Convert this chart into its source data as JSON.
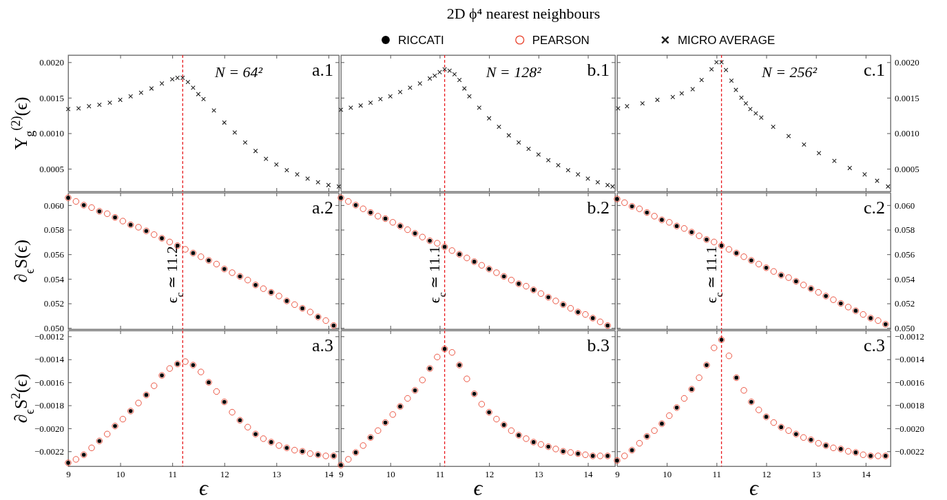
{
  "chart_data": [
    {
      "type": "scatter",
      "legend": "top",
      "ylabel": "Υ$_{g}$$^{(2)}$(ϵ)",
      "annotations": [
        "a.1",
        "N = 64²"
      ],
      "xlim": [
        9,
        14.2
      ],
      "xticks": [
        9,
        10,
        11,
        12,
        13,
        14
      ],
      "ylim": [
        0.00018,
        0.0021
      ],
      "yticks": [
        {
          "value": 0.0005,
          "label": "0.0005"
        },
        {
          "value": 0.001,
          "label": "0.0010"
        },
        {
          "value": 0.0015,
          "label": "0.0015"
        },
        {
          "value": 0.002,
          "label": "0.0020"
        }
      ],
      "tick_labels": "y",
      "ref_lines": [
        {
          "axis": "x",
          "value": 11.2,
          "color": "#e8181c",
          "line_style": "dashed"
        }
      ],
      "series": [
        {
          "name": "MICRO AVERAGE",
          "color": "#222222",
          "marker": "cross",
          "x": [
            9.0,
            9.2,
            9.4,
            9.6,
            9.8,
            10.0,
            10.2,
            10.4,
            10.6,
            10.8,
            11.0,
            11.1,
            11.2,
            11.3,
            11.4,
            11.5,
            11.6,
            11.8,
            12.0,
            12.2,
            12.4,
            12.6,
            12.8,
            13.0,
            13.2,
            13.4,
            13.6,
            13.8,
            14.0,
            14.2
          ],
          "values": [
            0.00134,
            0.00135,
            0.00138,
            0.0014,
            0.00143,
            0.00147,
            0.00152,
            0.00157,
            0.00163,
            0.0017,
            0.00176,
            0.00178,
            0.00178,
            0.00172,
            0.00164,
            0.00155,
            0.00148,
            0.00132,
            0.00115,
            0.00101,
            0.00087,
            0.00075,
            0.00064,
            0.00056,
            0.00048,
            0.00042,
            0.00036,
            0.00031,
            0.00027,
            0.00025
          ]
        }
      ]
    },
    {
      "type": "scatter",
      "title": "2D ϕ⁴ nearest neighbours",
      "annotations": [
        "b.1",
        "N = 128²"
      ],
      "xlim": [
        9,
        14.55
      ],
      "xticks": [
        9,
        10,
        11,
        12,
        13,
        14
      ],
      "ylim": [
        0.00018,
        0.0021
      ],
      "yticks": [
        {
          "value": 0.0005,
          "label": null
        },
        {
          "value": 0.001,
          "label": null
        },
        {
          "value": 0.0015,
          "label": null
        },
        {
          "value": 0.002,
          "label": null
        }
      ],
      "tick_labels": false,
      "ref_lines": [
        {
          "axis": "x",
          "value": 11.1,
          "color": "#e8181c",
          "line_style": "dashed"
        }
      ],
      "series": [
        {
          "color": "#222222",
          "marker": "cross",
          "x": [
            9.0,
            9.2,
            9.4,
            9.6,
            9.8,
            10.0,
            10.2,
            10.4,
            10.6,
            10.8,
            10.9,
            11.0,
            11.1,
            11.2,
            11.3,
            11.4,
            11.5,
            11.6,
            11.8,
            12.0,
            12.2,
            12.4,
            12.6,
            12.8,
            13.0,
            13.2,
            13.4,
            13.6,
            13.8,
            14.0,
            14.2,
            14.4,
            14.5
          ],
          "values": [
            0.00133,
            0.00136,
            0.00139,
            0.00143,
            0.00148,
            0.00152,
            0.00158,
            0.00164,
            0.0017,
            0.00177,
            0.00181,
            0.00186,
            0.0019,
            0.00188,
            0.00183,
            0.00175,
            0.00163,
            0.00152,
            0.00136,
            0.00121,
            0.00109,
            0.00097,
            0.00087,
            0.00078,
            0.0007,
            0.00062,
            0.00055,
            0.00048,
            0.00042,
            0.00036,
            0.00031,
            0.00027,
            0.00025
          ]
        }
      ]
    },
    {
      "type": "scatter",
      "annotations": [
        "c.1",
        "N = 256²"
      ],
      "xlim": [
        9,
        14.5
      ],
      "xticks": [
        9,
        10,
        11,
        12,
        13,
        14
      ],
      "ylim": [
        0.00018,
        0.0021
      ],
      "yticks": [
        {
          "value": 0.0005,
          "label": "0.0005"
        },
        {
          "value": 0.001,
          "label": "0.0010"
        },
        {
          "value": 0.0015,
          "label": "0.0015"
        },
        {
          "value": 0.002,
          "label": "0.0020"
        }
      ],
      "tick_labels": "y",
      "ref_lines": [
        {
          "axis": "x",
          "value": 11.1,
          "color": "#e8181c",
          "line_style": "dashed"
        }
      ],
      "series": [
        {
          "color": "#222222",
          "marker": "cross",
          "x": [
            9.02,
            9.2,
            9.51,
            9.81,
            10.12,
            10.3,
            10.52,
            10.7,
            10.9,
            11.0,
            11.1,
            11.19,
            11.3,
            11.39,
            11.5,
            11.59,
            11.68,
            11.79,
            11.9,
            12.14,
            12.45,
            12.76,
            13.06,
            13.37,
            13.68,
            13.98,
            14.23,
            14.45
          ],
          "values": [
            0.00135,
            0.00138,
            0.00142,
            0.00147,
            0.00151,
            0.00156,
            0.00162,
            0.00175,
            0.0019,
            0.002,
            0.002,
            0.00189,
            0.00174,
            0.00161,
            0.0015,
            0.00142,
            0.00134,
            0.00128,
            0.00122,
            0.00109,
            0.00096,
            0.00084,
            0.00072,
            0.00061,
            0.00051,
            0.00042,
            0.00033,
            0.00025
          ]
        }
      ]
    },
    {
      "type": "scatter",
      "legend": "top",
      "ylabel": "∂$_{ϵ}$S(ϵ)",
      "annotations": [
        "a.2"
      ],
      "xlim": [
        9,
        14.2
      ],
      "xticks": [
        9,
        10,
        11,
        12,
        13,
        14
      ],
      "ylim": [
        0.0499,
        0.061
      ],
      "yticks": [
        {
          "value": 0.05,
          "label": "0.050"
        },
        {
          "value": 0.052,
          "label": "0.052"
        },
        {
          "value": 0.054,
          "label": "0.054"
        },
        {
          "value": 0.056,
          "label": "0.056"
        },
        {
          "value": 0.058,
          "label": "0.058"
        },
        {
          "value": 0.06,
          "label": "0.060"
        }
      ],
      "tick_labels": "y",
      "ref_lines": [
        {
          "axis": "x",
          "value": 11.2,
          "color": "#e8181c",
          "line_style": "dashed",
          "label": "ϵ$_{c}$ ≃ 11.2"
        }
      ],
      "series": [
        {
          "name": "RICCATI",
          "color": "#000000",
          "marker": "circle",
          "x": [
            9.0,
            9.3,
            9.6,
            9.9,
            10.2,
            10.5,
            10.8,
            11.1,
            11.4,
            11.7,
            12.0,
            12.3,
            12.6,
            12.9,
            13.2,
            13.5,
            13.8,
            14.1
          ],
          "values": [
            0.0606,
            0.06,
            0.0595,
            0.059,
            0.0584,
            0.0579,
            0.0573,
            0.0567,
            0.0561,
            0.0555,
            0.0548,
            0.0542,
            0.0535,
            0.0529,
            0.0522,
            0.0516,
            0.0509,
            0.0502
          ]
        },
        {
          "name": "PEARSON",
          "color": "#e8402a",
          "marker": "circle",
          "x": [
            9.0,
            9.15,
            9.3,
            9.45,
            9.6,
            9.75,
            9.9,
            10.05,
            10.2,
            10.35,
            10.5,
            10.65,
            10.8,
            10.95,
            11.1,
            11.25,
            11.4,
            11.55,
            11.7,
            11.85,
            12.0,
            12.15,
            12.3,
            12.45,
            12.6,
            12.75,
            12.9,
            13.05,
            13.2,
            13.35,
            13.5,
            13.65,
            13.8,
            13.95,
            14.1
          ],
          "values": [
            0.0606,
            0.0603,
            0.06,
            0.0598,
            0.0595,
            0.0593,
            0.059,
            0.0587,
            0.0584,
            0.0582,
            0.0579,
            0.0576,
            0.0573,
            0.057,
            0.0567,
            0.0564,
            0.0561,
            0.0558,
            0.0555,
            0.0552,
            0.0548,
            0.0545,
            0.0542,
            0.0539,
            0.0535,
            0.0532,
            0.0529,
            0.0526,
            0.0522,
            0.0519,
            0.0516,
            0.0513,
            0.0509,
            0.0506,
            0.0502
          ]
        }
      ]
    },
    {
      "type": "scatter",
      "annotations": [
        "b.2"
      ],
      "xlim": [
        9,
        14.55
      ],
      "xticks": [
        9,
        10,
        11,
        12,
        13,
        14
      ],
      "ylim": [
        0.0499,
        0.061
      ],
      "yticks": [
        {
          "value": 0.05,
          "label": null
        },
        {
          "value": 0.052,
          "label": null
        },
        {
          "value": 0.054,
          "label": null
        },
        {
          "value": 0.056,
          "label": null
        },
        {
          "value": 0.058,
          "label": null
        },
        {
          "value": 0.06,
          "label": null
        }
      ],
      "tick_labels": false,
      "ref_lines": [
        {
          "axis": "x",
          "value": 11.1,
          "color": "#e8181c",
          "line_style": "dashed",
          "label": "ϵ$_{c}$ ≃ 11.1"
        }
      ],
      "series": [
        {
          "color": "#000000",
          "marker": "circle",
          "x": [
            9.0,
            9.3,
            9.6,
            9.9,
            10.2,
            10.5,
            10.8,
            11.1,
            11.4,
            11.7,
            12.0,
            12.3,
            12.6,
            12.9,
            13.2,
            13.5,
            13.8,
            14.1,
            14.4
          ],
          "values": [
            0.0606,
            0.06,
            0.0594,
            0.0589,
            0.0583,
            0.0577,
            0.0571,
            0.0566,
            0.056,
            0.0554,
            0.0548,
            0.0542,
            0.0536,
            0.0531,
            0.0525,
            0.0519,
            0.0513,
            0.0508,
            0.0502
          ]
        },
        {
          "color": "#e8402a",
          "marker": "circle",
          "x": [
            9.0,
            9.15,
            9.3,
            9.45,
            9.6,
            9.75,
            9.9,
            10.05,
            10.2,
            10.35,
            10.5,
            10.65,
            10.8,
            10.95,
            11.1,
            11.25,
            11.4,
            11.55,
            11.7,
            11.85,
            12.0,
            12.15,
            12.3,
            12.45,
            12.6,
            12.75,
            12.9,
            13.05,
            13.2,
            13.35,
            13.5,
            13.65,
            13.8,
            13.95,
            14.1,
            14.25,
            14.4
          ],
          "values": [
            0.0606,
            0.0603,
            0.06,
            0.0597,
            0.0594,
            0.0591,
            0.0589,
            0.0586,
            0.0583,
            0.058,
            0.0577,
            0.0574,
            0.0571,
            0.0569,
            0.0566,
            0.0563,
            0.056,
            0.0557,
            0.0554,
            0.0551,
            0.0548,
            0.0545,
            0.0542,
            0.0539,
            0.0536,
            0.0534,
            0.0531,
            0.0528,
            0.0525,
            0.0522,
            0.0519,
            0.0516,
            0.0513,
            0.0511,
            0.0508,
            0.0505,
            0.0502
          ]
        }
      ]
    },
    {
      "type": "scatter",
      "annotations": [
        "c.2"
      ],
      "xlim": [
        9,
        14.5
      ],
      "xticks": [
        9,
        10,
        11,
        12,
        13,
        14
      ],
      "ylim": [
        0.0499,
        0.061
      ],
      "yticks": [
        {
          "value": 0.05,
          "label": "0.050"
        },
        {
          "value": 0.052,
          "label": "0.052"
        },
        {
          "value": 0.054,
          "label": "0.054"
        },
        {
          "value": 0.056,
          "label": "0.056"
        },
        {
          "value": 0.058,
          "label": "0.058"
        },
        {
          "value": 0.06,
          "label": "0.060"
        }
      ],
      "tick_labels": "y",
      "ref_lines": [
        {
          "axis": "x",
          "value": 11.1,
          "color": "#e8181c",
          "line_style": "dashed",
          "label": "ϵ$_{c}$ ≃ 11.1"
        }
      ],
      "series": [
        {
          "color": "#000000",
          "marker": "circle",
          "x": [
            9.0,
            9.3,
            9.6,
            9.9,
            10.2,
            10.5,
            10.8,
            11.1,
            11.4,
            11.7,
            12.0,
            12.3,
            12.6,
            12.9,
            13.2,
            13.5,
            13.8,
            14.1,
            14.4
          ],
          "values": [
            0.0605,
            0.0599,
            0.0594,
            0.0588,
            0.0583,
            0.0578,
            0.0572,
            0.0567,
            0.0561,
            0.0555,
            0.0549,
            0.0543,
            0.0538,
            0.0532,
            0.0526,
            0.052,
            0.0514,
            0.0508,
            0.0503
          ]
        },
        {
          "color": "#e8402a",
          "marker": "circle",
          "x": [
            9.0,
            9.15,
            9.3,
            9.45,
            9.6,
            9.75,
            9.9,
            10.05,
            10.2,
            10.35,
            10.5,
            10.65,
            10.8,
            10.95,
            11.1,
            11.25,
            11.4,
            11.55,
            11.7,
            11.85,
            12.0,
            12.15,
            12.3,
            12.45,
            12.6,
            12.75,
            12.9,
            13.05,
            13.2,
            13.35,
            13.5,
            13.65,
            13.8,
            13.95,
            14.1,
            14.25,
            14.4
          ],
          "values": [
            0.0605,
            0.0602,
            0.0599,
            0.0597,
            0.0594,
            0.0591,
            0.0588,
            0.0586,
            0.0583,
            0.0581,
            0.0578,
            0.0575,
            0.0572,
            0.057,
            0.0567,
            0.0564,
            0.0561,
            0.0558,
            0.0555,
            0.0552,
            0.0549,
            0.0546,
            0.0543,
            0.0541,
            0.0538,
            0.0535,
            0.0532,
            0.0529,
            0.0526,
            0.0523,
            0.052,
            0.0517,
            0.0514,
            0.0511,
            0.0508,
            0.0506,
            0.0503
          ]
        }
      ]
    },
    {
      "type": "scatter",
      "ylabel": "∂$_{ϵ}$S$^{2}$(ϵ)",
      "xlabel": "ϵ",
      "annotations": [
        "a.3"
      ],
      "xlim": [
        9,
        14.2
      ],
      "xticks": [
        9,
        10,
        11,
        12,
        13,
        14
      ],
      "ylim": [
        -0.00233,
        -0.00115
      ],
      "yticks": [
        {
          "value": -0.0022,
          "label": "−0.0022"
        },
        {
          "value": -0.002,
          "label": "−0.0020"
        },
        {
          "value": -0.0018,
          "label": "−0.0018"
        },
        {
          "value": -0.0016,
          "label": "−0.0016"
        },
        {
          "value": -0.0014,
          "label": "−0.0014"
        },
        {
          "value": -0.0012,
          "label": "−0.0012"
        }
      ],
      "ref_lines": [
        {
          "axis": "x",
          "value": 11.2,
          "color": "#e8181c",
          "line_style": "dashed"
        }
      ],
      "series": [
        {
          "color": "#000000",
          "marker": "circle",
          "x": [
            9.0,
            9.3,
            9.6,
            9.9,
            10.2,
            10.5,
            10.8,
            11.1,
            11.4,
            11.7,
            12.0,
            12.3,
            12.6,
            12.9,
            13.2,
            13.5,
            13.8,
            14.1
          ],
          "values": [
            -0.0023,
            -0.00223,
            -0.00211,
            -0.00198,
            -0.00185,
            -0.00171,
            -0.00154,
            -0.00144,
            -0.00145,
            -0.0016,
            -0.00177,
            -0.00193,
            -0.00205,
            -0.00212,
            -0.00217,
            -0.0022,
            -0.00223,
            -0.00224
          ]
        },
        {
          "color": "#e8402a",
          "marker": "circle",
          "x": [
            9.0,
            9.15,
            9.3,
            9.45,
            9.6,
            9.75,
            9.9,
            10.05,
            10.2,
            10.35,
            10.5,
            10.65,
            10.8,
            10.95,
            11.1,
            11.25,
            11.4,
            11.55,
            11.7,
            11.85,
            12.0,
            12.15,
            12.3,
            12.45,
            12.6,
            12.75,
            12.9,
            13.05,
            13.2,
            13.35,
            13.5,
            13.65,
            13.8,
            13.95,
            14.1
          ],
          "values": [
            -0.0023,
            -0.00227,
            -0.00223,
            -0.00217,
            -0.00211,
            -0.00205,
            -0.00198,
            -0.00192,
            -0.00185,
            -0.00178,
            -0.00171,
            -0.00163,
            -0.00154,
            -0.00148,
            -0.00144,
            -0.00142,
            -0.00145,
            -0.00151,
            -0.0016,
            -0.00168,
            -0.00177,
            -0.00186,
            -0.00193,
            -0.00199,
            -0.00205,
            -0.00209,
            -0.00212,
            -0.00215,
            -0.00217,
            -0.00219,
            -0.0022,
            -0.00222,
            -0.00223,
            -0.00224,
            -0.00224
          ]
        }
      ]
    },
    {
      "type": "scatter",
      "xlabel": "ϵ",
      "annotations": [
        "b.3"
      ],
      "xlim": [
        9,
        14.55
      ],
      "xticks": [
        9,
        10,
        11,
        12,
        13,
        14
      ],
      "ylim": [
        -0.00233,
        -0.00115
      ],
      "yticks": [
        {
          "value": -0.0022,
          "label": null
        },
        {
          "value": -0.002,
          "label": null
        },
        {
          "value": -0.0018,
          "label": null
        },
        {
          "value": -0.0016,
          "label": null
        },
        {
          "value": -0.0014,
          "label": null
        },
        {
          "value": -0.0012,
          "label": null
        }
      ],
      "tick_labels": "x",
      "ref_lines": [
        {
          "axis": "x",
          "value": 11.1,
          "color": "#e8181c",
          "line_style": "dashed"
        }
      ],
      "series": [
        {
          "color": "#000000",
          "marker": "circle",
          "x": [
            9.0,
            9.3,
            9.6,
            9.9,
            10.2,
            10.5,
            10.8,
            11.1,
            11.4,
            11.7,
            12.0,
            12.3,
            12.6,
            12.9,
            13.2,
            13.5,
            13.8,
            14.1,
            14.4
          ],
          "values": [
            -0.00232,
            -0.00221,
            -0.00208,
            -0.00195,
            -0.00181,
            -0.00167,
            -0.00148,
            -0.00131,
            -0.00145,
            -0.0017,
            -0.00186,
            -0.00197,
            -0.00206,
            -0.00212,
            -0.00216,
            -0.0022,
            -0.00222,
            -0.00224,
            -0.00224
          ]
        },
        {
          "color": "#e8402a",
          "marker": "circle",
          "x": [
            9.0,
            9.15,
            9.3,
            9.45,
            9.6,
            9.75,
            9.9,
            10.05,
            10.2,
            10.35,
            10.5,
            10.65,
            10.8,
            10.95,
            11.1,
            11.25,
            11.4,
            11.55,
            11.7,
            11.85,
            12.0,
            12.15,
            12.3,
            12.45,
            12.6,
            12.75,
            12.9,
            13.05,
            13.2,
            13.35,
            13.5,
            13.65,
            13.8,
            13.95,
            14.1,
            14.25,
            14.4
          ],
          "values": [
            -0.00232,
            -0.00227,
            -0.00221,
            -0.00215,
            -0.00208,
            -0.00202,
            -0.00195,
            -0.00188,
            -0.00181,
            -0.00174,
            -0.00167,
            -0.00158,
            -0.00148,
            -0.00138,
            -0.00131,
            -0.00134,
            -0.00145,
            -0.00157,
            -0.0017,
            -0.00179,
            -0.00186,
            -0.00192,
            -0.00197,
            -0.00202,
            -0.00206,
            -0.00209,
            -0.00212,
            -0.00214,
            -0.00216,
            -0.00218,
            -0.0022,
            -0.00221,
            -0.00222,
            -0.00223,
            -0.00224,
            -0.00224,
            -0.00224
          ]
        }
      ]
    },
    {
      "type": "scatter",
      "xlabel": "ϵ",
      "annotations": [
        "c.3"
      ],
      "xlim": [
        9,
        14.5
      ],
      "xticks": [
        9,
        10,
        11,
        12,
        13,
        14
      ],
      "ylim": [
        -0.00233,
        -0.00115
      ],
      "yticks": [
        {
          "value": -0.0022,
          "label": "−0.0022"
        },
        {
          "value": -0.002,
          "label": "−0.0020"
        },
        {
          "value": -0.0018,
          "label": "−0.0018"
        },
        {
          "value": -0.0016,
          "label": "−0.0016"
        },
        {
          "value": -0.0014,
          "label": "−0.0014"
        },
        {
          "value": -0.0012,
          "label": "−0.0012"
        }
      ],
      "ref_lines": [
        {
          "axis": "x",
          "value": 11.1,
          "color": "#e8181c",
          "line_style": "dashed"
        }
      ],
      "series": [
        {
          "color": "#000000",
          "marker": "circle",
          "x": [
            9.0,
            9.3,
            9.6,
            9.9,
            10.2,
            10.5,
            10.8,
            11.1,
            11.4,
            11.7,
            12.0,
            12.3,
            12.6,
            12.9,
            13.2,
            13.5,
            13.8,
            14.1,
            14.4
          ],
          "values": [
            -0.00228,
            -0.00219,
            -0.00207,
            -0.00196,
            -0.00182,
            -0.00166,
            -0.00145,
            -0.00123,
            -0.00156,
            -0.00177,
            -0.0019,
            -0.00199,
            -0.00205,
            -0.0021,
            -0.00215,
            -0.00218,
            -0.00221,
            -0.00224,
            -0.00224
          ]
        },
        {
          "color": "#e8402a",
          "marker": "circle",
          "x": [
            9.0,
            9.15,
            9.3,
            9.45,
            9.6,
            9.75,
            9.9,
            10.05,
            10.2,
            10.35,
            10.5,
            10.65,
            10.8,
            10.95,
            11.1,
            11.25,
            11.4,
            11.55,
            11.7,
            11.85,
            12.0,
            12.15,
            12.3,
            12.45,
            12.6,
            12.75,
            12.9,
            13.05,
            13.2,
            13.35,
            13.5,
            13.65,
            13.8,
            13.95,
            14.1,
            14.25,
            14.4
          ],
          "values": [
            -0.00228,
            -0.00224,
            -0.00219,
            -0.00213,
            -0.00207,
            -0.00202,
            -0.00196,
            -0.00189,
            -0.00182,
            -0.00174,
            -0.00166,
            -0.00156,
            -0.00145,
            -0.0013,
            -0.00123,
            -0.00137,
            -0.00156,
            -0.00167,
            -0.00177,
            -0.00184,
            -0.0019,
            -0.00195,
            -0.00199,
            -0.00202,
            -0.00205,
            -0.00208,
            -0.0021,
            -0.00213,
            -0.00215,
            -0.00217,
            -0.00218,
            -0.0022,
            -0.00221,
            -0.00223,
            -0.00224,
            -0.00224,
            -0.00224
          ]
        }
      ]
    }
  ]
}
